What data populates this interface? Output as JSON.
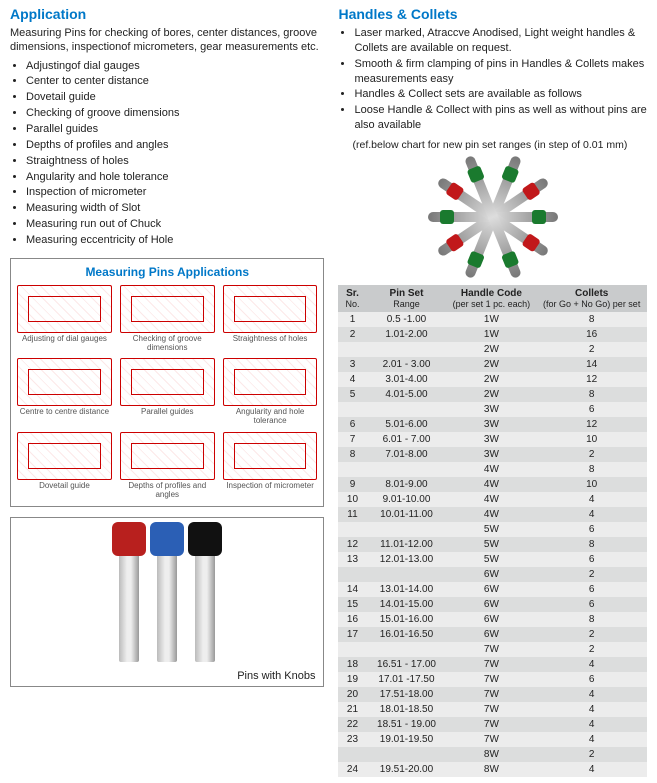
{
  "left": {
    "heading": "Application",
    "intro": "Measuring Pins for checking of bores, center distances, groove dimensions, inspectionof micrometers, gear measurements etc.",
    "bullets": [
      "Adjustingof dial gauges",
      "Center to center distance",
      "Dovetail guide",
      "Checking of groove dimensions",
      "Parallel guides",
      "Depths of profiles and angles",
      "Straightness of holes",
      "Angularity and hole tolerance",
      "Inspection of micrometer",
      "Measuring width of Slot",
      "Measuring run out of Chuck",
      "Measuring eccentricity of Hole"
    ],
    "apps_title": "Measuring Pins Applications",
    "apps": [
      "Adjusting of dial gauges",
      "Checking of groove dimensions",
      "Straightness of holes",
      "Centre to centre distance",
      "Parallel guides",
      "Angularity and hole tolerance",
      "Dovetail guide",
      "Depths of profiles and angles",
      "Inspection of micrometer"
    ],
    "knobs_caption": "Pins with Knobs"
  },
  "right": {
    "heading": "Handles & Collets",
    "bullets": [
      "Laser marked, Atraccve Anodised, Light weight handles & Collets are available on request.",
      "Smooth & firm clamping of pins in Handles & Collets makes measurements easy",
      "Handles & Collect sets are available as follows",
      "Loose Handle & Collect with pins as well as without pins are also available"
    ],
    "ref_note": "(ref.below chart for new pin set ranges (in step of 0.01 mm)",
    "table": {
      "headers": {
        "sr": {
          "l1": "Sr.",
          "l2": "No."
        },
        "rng": {
          "l1": "Pin Set",
          "l2": "Range"
        },
        "hnd": {
          "l1": "Handle Code",
          "l2": "(per set 1 pc. each)"
        },
        "col": {
          "l1": "Collets",
          "l2": "(for Go + No Go) per set"
        }
      },
      "rows": [
        {
          "sr": "1",
          "rng": "0.5 -1.00",
          "hnd": "1W",
          "col": "8"
        },
        {
          "sr": "2",
          "rng": "1.01-2.00",
          "hnd": "1W",
          "col": "16"
        },
        {
          "sr": "",
          "rng": "",
          "hnd": "2W",
          "col": "2"
        },
        {
          "sr": "3",
          "rng": "2.01 - 3.00",
          "hnd": "2W",
          "col": "14"
        },
        {
          "sr": "4",
          "rng": "3.01-4.00",
          "hnd": "2W",
          "col": "12"
        },
        {
          "sr": "5",
          "rng": "4.01-5.00",
          "hnd": "2W",
          "col": "8"
        },
        {
          "sr": "",
          "rng": "",
          "hnd": "3W",
          "col": "6"
        },
        {
          "sr": "6",
          "rng": "5.01-6.00",
          "hnd": "3W",
          "col": "12"
        },
        {
          "sr": "7",
          "rng": "6.01 - 7.00",
          "hnd": "3W",
          "col": "10"
        },
        {
          "sr": "8",
          "rng": "7.01-8.00",
          "hnd": "3W",
          "col": "2"
        },
        {
          "sr": "",
          "rng": "",
          "hnd": "4W",
          "col": "8"
        },
        {
          "sr": "9",
          "rng": "8.01-9.00",
          "hnd": "4W",
          "col": "10"
        },
        {
          "sr": "10",
          "rng": "9.01-10.00",
          "hnd": "4W",
          "col": "4"
        },
        {
          "sr": "11",
          "rng": "10.01-11.00",
          "hnd": "4W",
          "col": "4"
        },
        {
          "sr": "",
          "rng": "",
          "hnd": "5W",
          "col": "6"
        },
        {
          "sr": "12",
          "rng": "11.01-12.00",
          "hnd": "5W",
          "col": "8"
        },
        {
          "sr": "13",
          "rng": "12.01-13.00",
          "hnd": "5W",
          "col": "6"
        },
        {
          "sr": "",
          "rng": "",
          "hnd": "6W",
          "col": "2"
        },
        {
          "sr": "14",
          "rng": "13.01-14.00",
          "hnd": "6W",
          "col": "6"
        },
        {
          "sr": "15",
          "rng": "14.01-15.00",
          "hnd": "6W",
          "col": "6"
        },
        {
          "sr": "16",
          "rng": "15.01-16.00",
          "hnd": "6W",
          "col": "8"
        },
        {
          "sr": "17",
          "rng": "16.01-16.50",
          "hnd": "6W",
          "col": "2"
        },
        {
          "sr": "",
          "rng": "",
          "hnd": "7W",
          "col": "2"
        },
        {
          "sr": "18",
          "rng": "16.51 - 17.00",
          "hnd": "7W",
          "col": "4"
        },
        {
          "sr": "19",
          "rng": "17.01 -17.50",
          "hnd": "7W",
          "col": "6"
        },
        {
          "sr": "20",
          "rng": "17.51-18.00",
          "hnd": "7W",
          "col": "4"
        },
        {
          "sr": "21",
          "rng": "18.01-18.50",
          "hnd": "7W",
          "col": "4"
        },
        {
          "sr": "22",
          "rng": "18.51 - 19.00",
          "hnd": "7W",
          "col": "4"
        },
        {
          "sr": "23",
          "rng": "19.01-19.50",
          "hnd": "7W",
          "col": "4"
        },
        {
          "sr": "",
          "rng": "",
          "hnd": "8W",
          "col": "2"
        },
        {
          "sr": "24",
          "rng": "19.51-20.00",
          "hnd": "8W",
          "col": "4"
        }
      ]
    }
  }
}
